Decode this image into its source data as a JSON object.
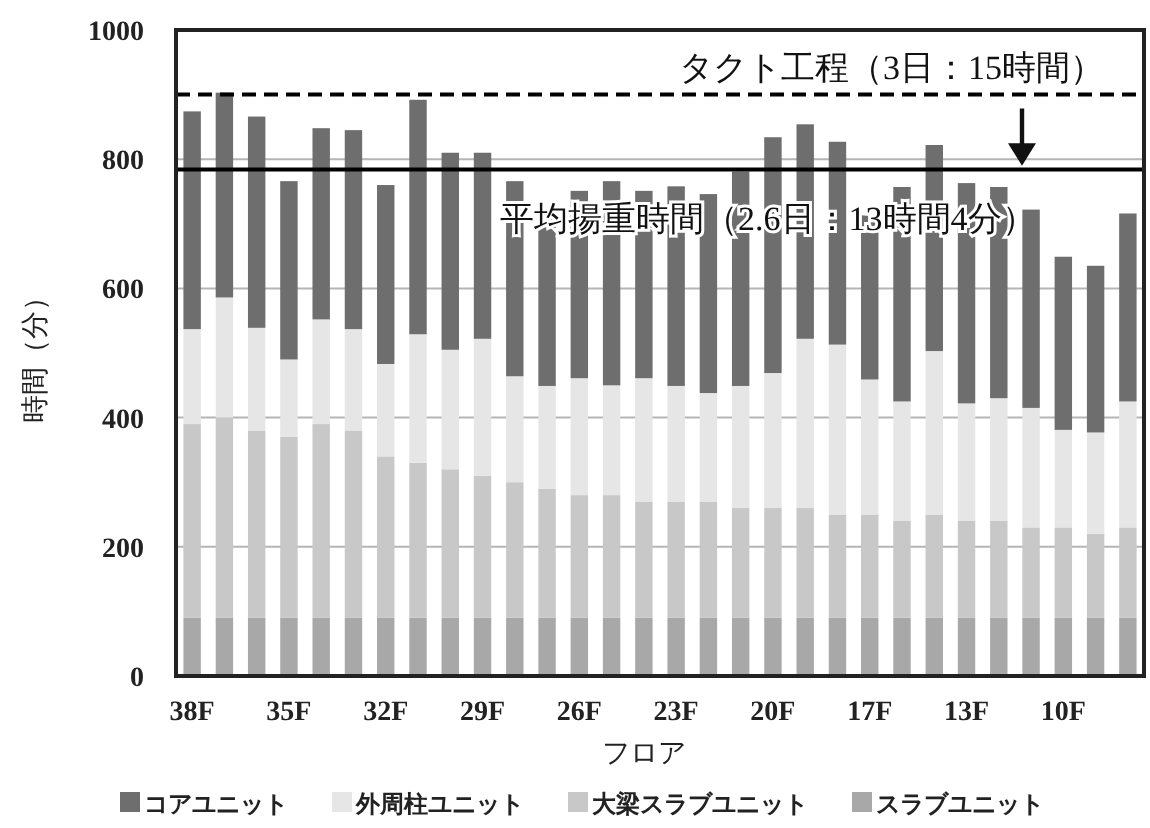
{
  "chart_data": {
    "type": "bar",
    "stacked": true,
    "xlabel": "フロア",
    "ylabel": "時間（分）",
    "categories": [
      "38F",
      null,
      null,
      "35F",
      null,
      null,
      "32F",
      null,
      null,
      "29F",
      null,
      null,
      "26F",
      null,
      null,
      "23F",
      null,
      null,
      "20F",
      null,
      null,
      "17F",
      null,
      null,
      "13F",
      null,
      null,
      "10F",
      null,
      null
    ],
    "series": [
      {
        "name": "スラブユニット",
        "color": "#a8a8a8",
        "values": [
          90,
          90,
          90,
          90,
          90,
          90,
          90,
          90,
          90,
          90,
          90,
          90,
          90,
          90,
          90,
          90,
          90,
          90,
          90,
          90,
          90,
          90,
          90,
          90,
          90,
          90,
          90,
          90,
          90,
          90
        ]
      },
      {
        "name": "大梁スラブユニット",
        "color": "#c8c8c8",
        "values": [
          300,
          310,
          290,
          280,
          300,
          290,
          250,
          240,
          230,
          220,
          210,
          200,
          190,
          190,
          180,
          180,
          180,
          170,
          170,
          170,
          160,
          160,
          150,
          160,
          150,
          150,
          140,
          140,
          130,
          140
        ]
      },
      {
        "name": "外周柱ユニット",
        "color": "#e6e6e6",
        "values": [
          147,
          186,
          159,
          120,
          162,
          157,
          143,
          199,
          185,
          212,
          164,
          159,
          181,
          170,
          191,
          179,
          168,
          189,
          209,
          262,
          263,
          209,
          185,
          253,
          182,
          190,
          185,
          151,
          157,
          195
        ]
      },
      {
        "name": "コアユニット",
        "color": "#6e6e6e",
        "values": [
          337,
          317,
          327,
          276,
          296,
          308,
          277,
          363,
          305,
          288,
          302,
          259,
          290,
          316,
          290,
          309,
          308,
          332,
          365,
          332,
          314,
          254,
          332,
          319,
          341,
          327,
          307,
          268,
          258,
          291
        ]
      }
    ],
    "ylim": [
      0,
      1000
    ],
    "yticks": [
      0,
      200,
      400,
      600,
      800,
      1000
    ],
    "grid": "y",
    "legend": "bottom",
    "ref_lines": [
      {
        "axis": "y",
        "value": 900,
        "label": "タクト工程（3日：15時間）",
        "line_style": "dashed",
        "color": "#000000"
      },
      {
        "axis": "y",
        "value": 784,
        "label": "平均揚重時間（2.6日：13時間4分）",
        "line_style": "solid",
        "color": "#000000"
      }
    ]
  }
}
